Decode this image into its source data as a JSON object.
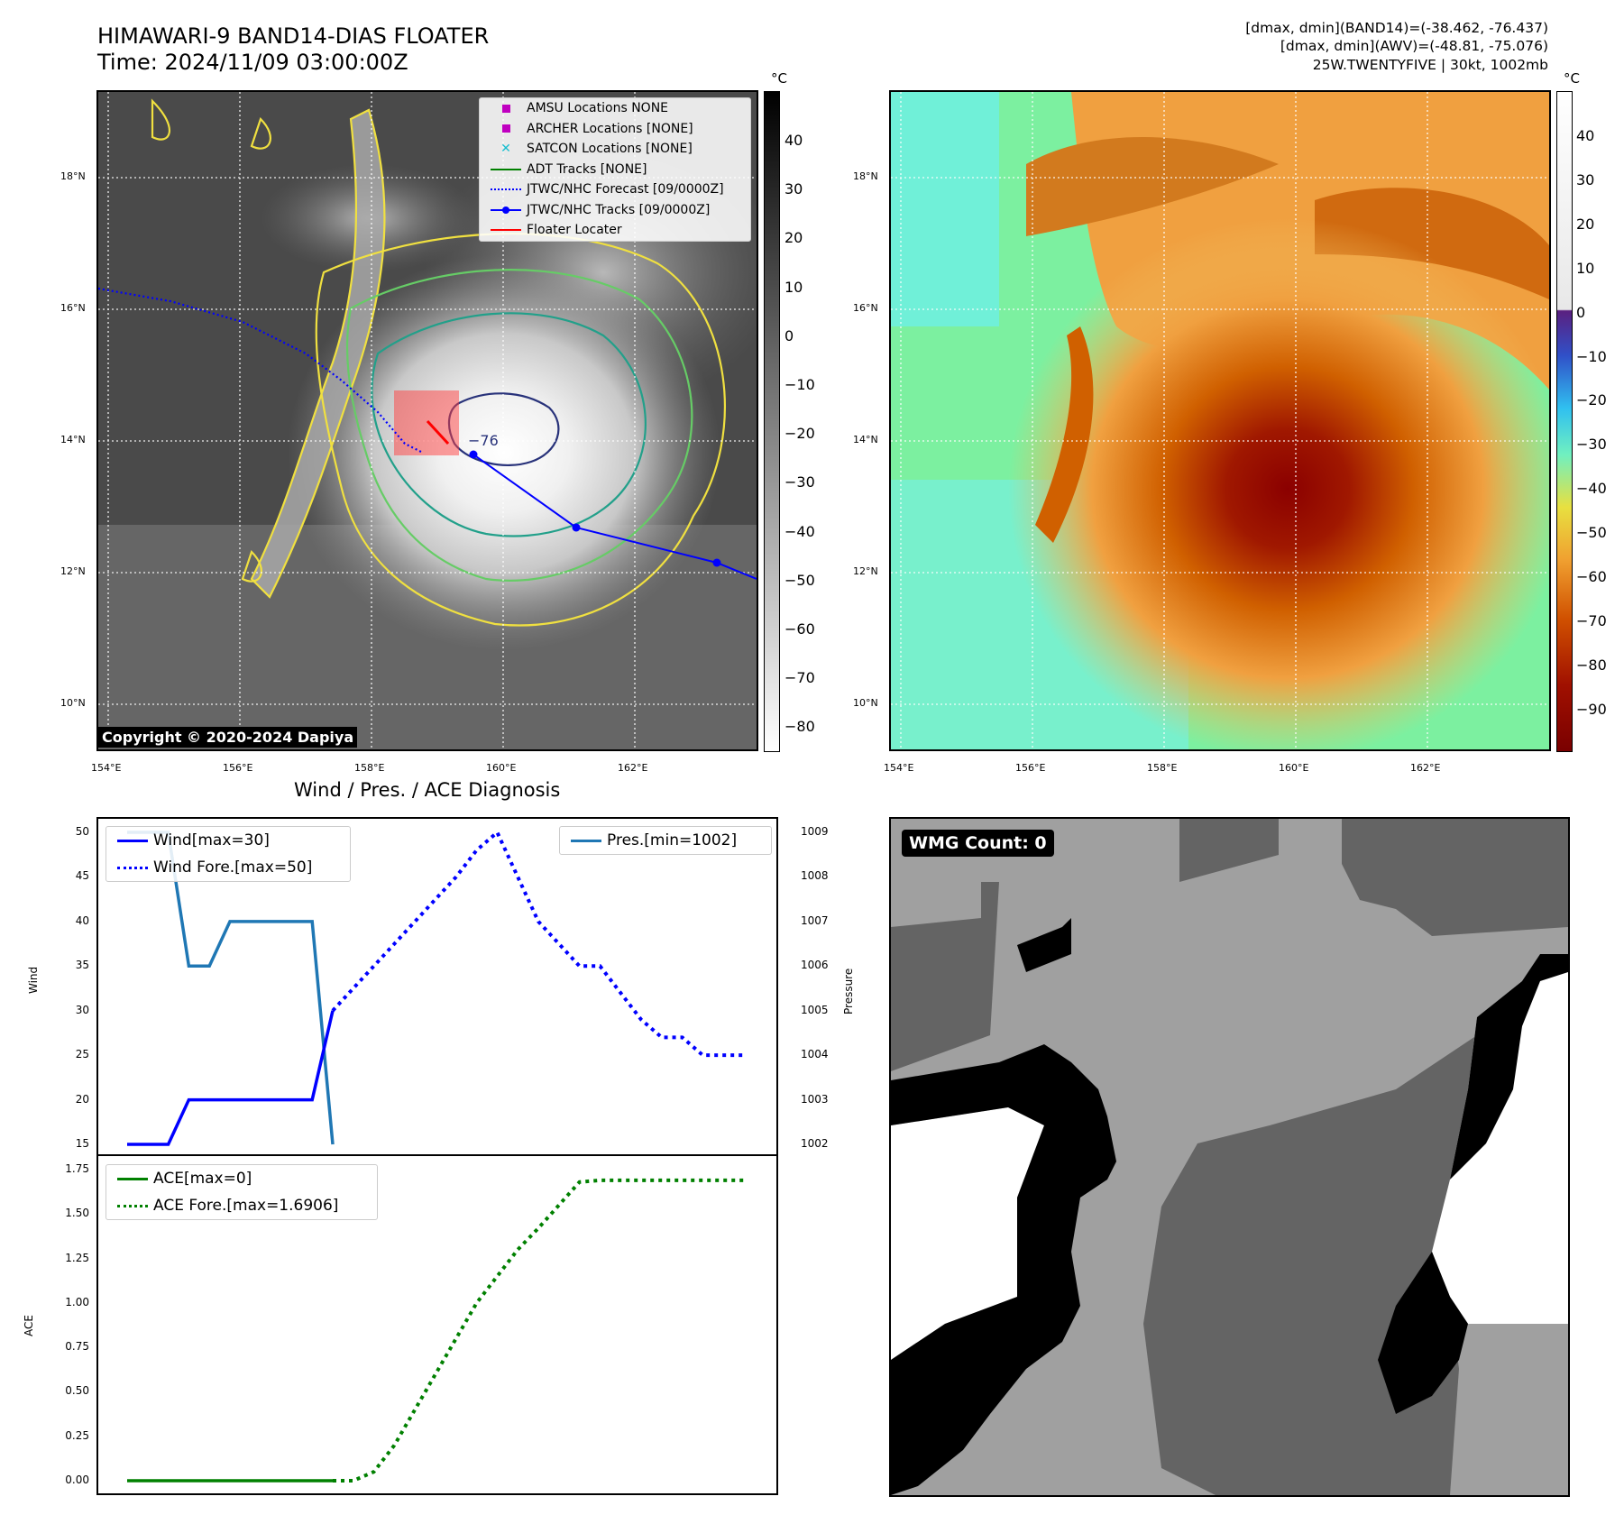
{
  "header": {
    "title_line1": "HIMAWARI-9 BAND14-DIAS FLOATER",
    "title_line2": "Time: 2024/11/09 03:00:00Z",
    "info_line1": "[dmax, dmin](BAND14)=(-38.462, -76.437)",
    "info_line2": "[dmax, dmin](AWV)=(-48.81, -75.076)",
    "info_line3": "25W.TWENTYFIVE | 30kt, 1002mb"
  },
  "map": {
    "lat_labels": [
      "18°N",
      "16°N",
      "14°N",
      "12°N",
      "10°N"
    ],
    "lon_labels": [
      "154°E",
      "156°E",
      "158°E",
      "160°E",
      "162°E"
    ],
    "contour_label": "−76",
    "copyright": "Copyright © 2020-2024 Dapiya",
    "legend": [
      {
        "label": "AMSU Locations NONE",
        "symbol": "square",
        "color": "#c000c0"
      },
      {
        "label": "ARCHER Locations [NONE]",
        "symbol": "square",
        "color": "#c000c0"
      },
      {
        "label": "SATCON Locations [NONE]",
        "symbol": "x",
        "color": "#17becf"
      },
      {
        "label": "ADT Tracks [NONE]",
        "symbol": "line",
        "color": "#008000"
      },
      {
        "label": "JTWC/NHC Forecast [09/0000Z]",
        "symbol": "dotted",
        "color": "#0000ff"
      },
      {
        "label": "JTWC/NHC Tracks [09/0000Z]",
        "symbol": "line-dot",
        "color": "#0000ff"
      },
      {
        "label": "Floater Locater",
        "symbol": "line",
        "color": "#ff0000"
      }
    ],
    "colorbar_unit": "°C",
    "gray_colorbar_ticks": [
      "40",
      "30",
      "20",
      "10",
      "0",
      "−10",
      "−20",
      "−30",
      "−40",
      "−50",
      "−60",
      "−70",
      "−80"
    ],
    "color_colorbar_ticks": [
      "40",
      "30",
      "20",
      "10",
      "0",
      "−10",
      "−20",
      "−30",
      "−40",
      "−50",
      "−60",
      "−70",
      "−80",
      "−90"
    ]
  },
  "diagnosis": {
    "title": "Wind / Pres. / ACE Diagnosis",
    "wind_ylabel": "Wind",
    "pres_ylabel": "Pressure",
    "ace_ylabel": "ACE",
    "wind_ticks": [
      "50",
      "45",
      "40",
      "35",
      "30",
      "25",
      "20",
      "15"
    ],
    "pres_ticks": [
      "1009",
      "1008",
      "1007",
      "1006",
      "1005",
      "1004",
      "1003",
      "1002"
    ],
    "ace_ticks": [
      "1.75",
      "1.50",
      "1.25",
      "1.00",
      "0.75",
      "0.50",
      "0.25",
      "0.00"
    ],
    "legend_wind": [
      "Wind[max=30]",
      "Wind Fore.[max=50]"
    ],
    "legend_pres": [
      "Pres.[min=1002]"
    ],
    "legend_ace": [
      "ACE[max=0]",
      "ACE Fore.[max=1.6906]"
    ]
  },
  "wmg": {
    "badge": "WMG Count: 0"
  },
  "chart_data": [
    {
      "type": "line",
      "title": "Wind / Pres. / ACE Diagnosis",
      "x": [
        0,
        1,
        2,
        3,
        4,
        5,
        6,
        7,
        8,
        9,
        10,
        11,
        12,
        13,
        14,
        15,
        16,
        17,
        18,
        19,
        20
      ],
      "ylabel": "Wind",
      "ylim": [
        14.5,
        50.5
      ],
      "y2label": "Pressure",
      "y2lim": [
        1001.99,
        1009.01
      ],
      "series": [
        {
          "name": "Wind[max=30]",
          "axis": "left",
          "x": [
            0,
            2,
            3,
            4,
            5,
            6,
            7,
            8,
            9,
            10
          ],
          "values": [
            15,
            15,
            20,
            20,
            20,
            20,
            20,
            20,
            20,
            30
          ],
          "color": "#0000ff",
          "style": "solid"
        },
        {
          "name": "Wind Fore.[max=50]",
          "axis": "left",
          "x": [
            10,
            12,
            14,
            16,
            17,
            18,
            19,
            20,
            22,
            23,
            24,
            25,
            26,
            27,
            28,
            29,
            30
          ],
          "values": [
            30,
            35,
            40,
            45,
            48,
            50,
            45,
            40,
            35,
            35,
            32,
            29,
            27,
            27,
            25,
            25,
            25
          ],
          "color": "#0000ff",
          "style": "dotted"
        },
        {
          "name": "Pres.[min=1002]",
          "axis": "right",
          "x": [
            0,
            2,
            3,
            4,
            5,
            6,
            7,
            8,
            9,
            10
          ],
          "values": [
            1009,
            1009,
            1006,
            1006,
            1007,
            1007,
            1007,
            1007,
            1007,
            1002
          ],
          "color": "#1f77b4",
          "style": "solid"
        }
      ]
    },
    {
      "type": "line",
      "ylabel": "ACE",
      "ylim": [
        -0.07,
        1.78
      ],
      "series": [
        {
          "name": "ACE[max=0]",
          "x": [
            0,
            10
          ],
          "values": [
            0,
            0
          ],
          "color": "#008000",
          "style": "solid"
        },
        {
          "name": "ACE Fore.[max=1.6906]",
          "x": [
            10,
            11,
            12,
            13,
            14,
            15,
            16,
            17,
            18,
            19,
            20,
            21,
            22,
            23,
            30
          ],
          "values": [
            0,
            0,
            0.05,
            0.2,
            0.4,
            0.6,
            0.8,
            1.0,
            1.15,
            1.3,
            1.42,
            1.55,
            1.68,
            1.69,
            1.69
          ],
          "color": "#008000",
          "style": "dotted"
        }
      ]
    }
  ]
}
